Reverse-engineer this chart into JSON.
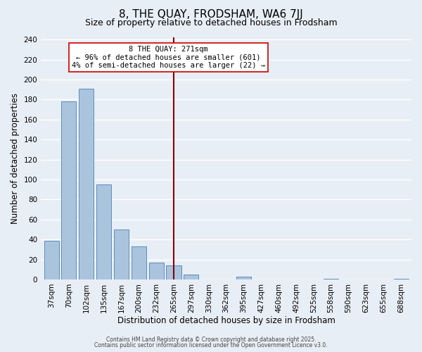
{
  "title": "8, THE QUAY, FRODSHAM, WA6 7JJ",
  "subtitle": "Size of property relative to detached houses in Frodsham",
  "xlabel": "Distribution of detached houses by size in Frodsham",
  "ylabel": "Number of detached properties",
  "categories": [
    "37sqm",
    "70sqm",
    "102sqm",
    "135sqm",
    "167sqm",
    "200sqm",
    "232sqm",
    "265sqm",
    "297sqm",
    "330sqm",
    "362sqm",
    "395sqm",
    "427sqm",
    "460sqm",
    "492sqm",
    "525sqm",
    "558sqm",
    "590sqm",
    "623sqm",
    "655sqm",
    "688sqm"
  ],
  "values": [
    39,
    178,
    191,
    95,
    50,
    33,
    17,
    14,
    5,
    0,
    0,
    3,
    0,
    0,
    0,
    0,
    1,
    0,
    0,
    0,
    1
  ],
  "bar_color": "#aac4de",
  "bar_edge_color": "#5b8db8",
  "bg_color": "#e8eef5",
  "grid_color": "#ffffff",
  "vline_x": 7,
  "vline_color": "#8b0000",
  "annotation_line1": "8 THE QUAY: 271sqm",
  "annotation_line2": "← 96% of detached houses are smaller (601)",
  "annotation_line3": "4% of semi-detached houses are larger (22) →",
  "footer1": "Contains HM Land Registry data © Crown copyright and database right 2025.",
  "footer2": "Contains public sector information licensed under the Open Government Licence v3.0.",
  "ylim_max": 242,
  "yticks": [
    0,
    20,
    40,
    60,
    80,
    100,
    120,
    140,
    160,
    180,
    200,
    220,
    240
  ],
  "title_fontsize": 11,
  "subtitle_fontsize": 9,
  "xlabel_fontsize": 8.5,
  "ylabel_fontsize": 8.5,
  "tick_fontsize": 7.5,
  "annot_fontsize": 7.5,
  "footer_fontsize": 5.5
}
